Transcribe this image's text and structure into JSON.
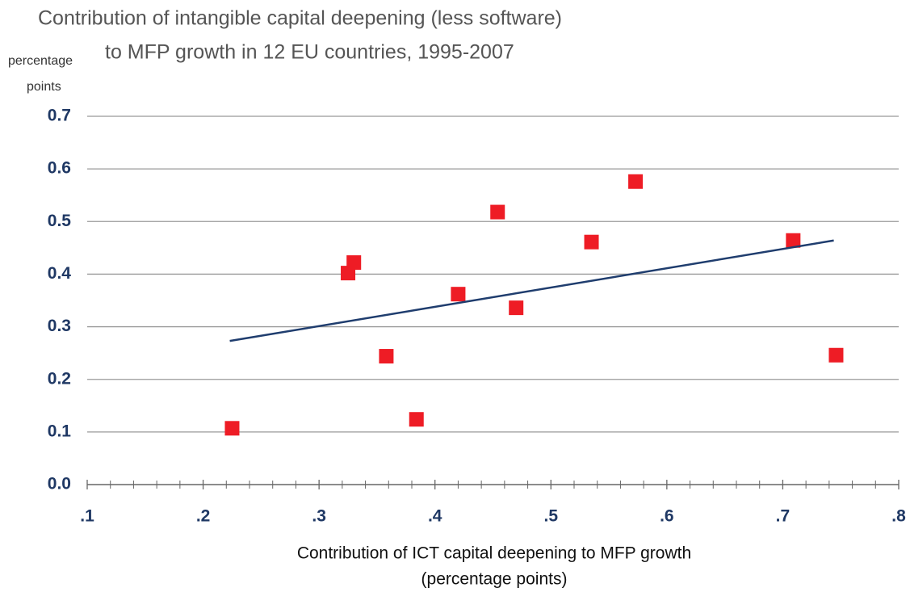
{
  "chart_data": {
    "type": "scatter",
    "title": [
      "Contribution of intangible capital deepening  (less software)",
      "to MFP growth in 12 EU countries, 1995-2007"
    ],
    "y_label": [
      "percentage",
      "points"
    ],
    "x_label": [
      "Contribution of ICT capital deepening to MFP growth",
      "(percentage points)"
    ],
    "x": [
      0.225,
      0.325,
      0.33,
      0.358,
      0.384,
      0.42,
      0.454,
      0.47,
      0.535,
      0.573,
      0.709,
      0.746
    ],
    "values": [
      0.107,
      0.402,
      0.422,
      0.244,
      0.124,
      0.362,
      0.518,
      0.336,
      0.461,
      0.576,
      0.464,
      0.246
    ],
    "color": "#ee1c25",
    "trendline": {
      "x": [
        0.223,
        0.744
      ],
      "values": [
        0.273,
        0.464
      ],
      "color": "#1f3d6e"
    },
    "xlim": [
      0.1,
      0.8
    ],
    "ylim": [
      0,
      0.7
    ],
    "xticks": [
      {
        "value": 0.1,
        "label": ".1"
      },
      {
        "value": 0.2,
        "label": ".2"
      },
      {
        "value": 0.3,
        "label": ".3"
      },
      {
        "value": 0.4,
        "label": ".4"
      },
      {
        "value": 0.5,
        "label": ".5"
      },
      {
        "value": 0.6,
        "label": ".6"
      },
      {
        "value": 0.7,
        "label": ".7"
      },
      {
        "value": 0.8,
        "label": ".8"
      }
    ],
    "xminorticks": [
      0.12,
      0.14,
      0.16,
      0.18,
      0.22,
      0.24,
      0.26,
      0.28,
      0.32,
      0.34,
      0.36,
      0.38,
      0.42,
      0.44,
      0.46,
      0.48,
      0.52,
      0.54,
      0.56,
      0.58,
      0.62,
      0.64,
      0.66,
      0.68,
      0.72,
      0.74,
      0.76,
      0.78
    ],
    "yticks": [
      {
        "value": 0,
        "label": "0.0"
      },
      0.1,
      0.2,
      0.3,
      0.4,
      0.5,
      0.6,
      0.7
    ],
    "grid": true
  }
}
